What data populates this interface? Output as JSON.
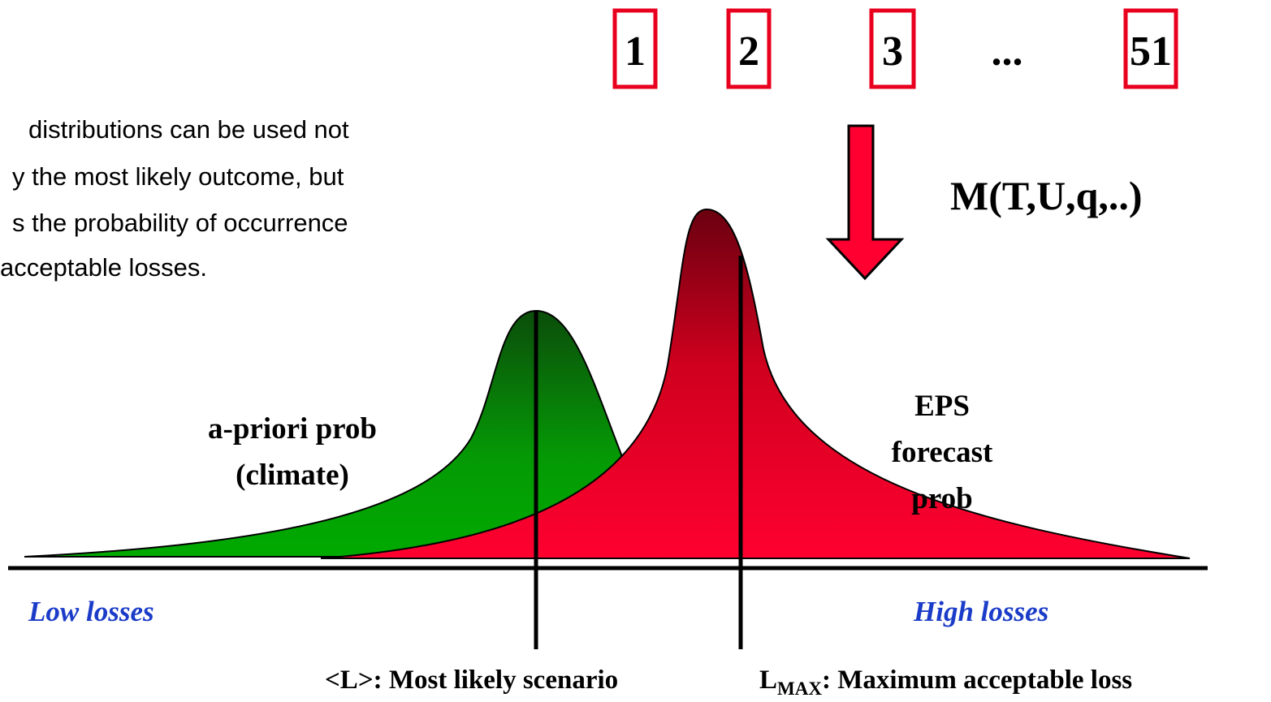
{
  "text_lines": [
    "distributions can be used not",
    "y the most likely outcome, but",
    "s the probability of occurrence",
    "acceptable losses."
  ],
  "members": [
    "1",
    "2",
    "3",
    "...",
    "51"
  ],
  "model": "M(T,U,q,..)",
  "climate_label": [
    "a-priori prob",
    "(climate)"
  ],
  "eps_label": [
    "EPS",
    "forecast",
    "prob"
  ],
  "axis": {
    "low": "Low losses",
    "high": "High losses"
  },
  "most_likely": "<L>: Most likely scenario",
  "max_loss": {
    "symbol": "L",
    "subscript": "MAX",
    "text": ": Maximum acceptable loss"
  }
}
